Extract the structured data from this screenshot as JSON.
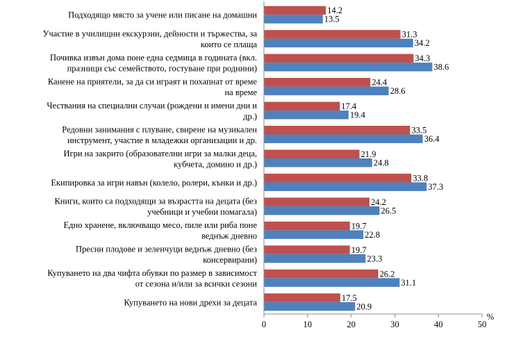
{
  "chart_data": {
    "type": "bar",
    "orientation": "horizontal",
    "unit_label": "%",
    "xlim": [
      0,
      50
    ],
    "xticks": [
      0,
      10,
      20,
      30,
      40,
      50
    ],
    "grid": false,
    "categories": [
      [
        "Подходящо място за учене или писане на домашни"
      ],
      [
        "Участие в училищни екскурзии, дейности и тържества, за",
        "които се плаща"
      ],
      [
        "Почивка извън дома поне една седмица в годината (вкл.",
        "празници със семейството, гостуване при роднини)"
      ],
      [
        "Канене на приятели, за да си играят и похапнат от време",
        "на време"
      ],
      [
        "Чествания на специални случаи (рождени и имени дни и",
        "др.)"
      ],
      [
        "Редовни занимания с плуване, свирене на музикален",
        "инструмент, участие в младежки организации и др."
      ],
      [
        "Игри на закрито (образователни игри за малки деца,",
        "кубчета, домино и др.)"
      ],
      [
        "Екипировка за игри навън (колело, ролери, кънки и др.)"
      ],
      [
        "Книги, които са подходящи за възрастта на децата (без",
        "учебници и учебни помагала)"
      ],
      [
        "Едно хранене, включващо месо, пиле или риба поне",
        "веднъж дневно"
      ],
      [
        "Пресни плодове и зеленчуци веднъж дневно (без",
        "консервирани)"
      ],
      [
        "Купуването на два чифта обувки по размер в зависимост",
        "от сезона и/или за всички сезони"
      ],
      [
        "Купуването на нови дрехи за децата"
      ]
    ],
    "series": [
      {
        "name": "series-1",
        "color": "#c0504d",
        "values": [
          14.2,
          31.3,
          34.3,
          24.4,
          17.4,
          33.5,
          21.9,
          33.8,
          24.2,
          19.7,
          19.7,
          26.2,
          17.5
        ]
      },
      {
        "name": "series-2",
        "color": "#4f81bd",
        "values": [
          13.5,
          34.2,
          38.6,
          28.6,
          19.4,
          36.4,
          24.8,
          37.3,
          26.5,
          22.8,
          23.3,
          31.1,
          20.9
        ]
      }
    ]
  }
}
